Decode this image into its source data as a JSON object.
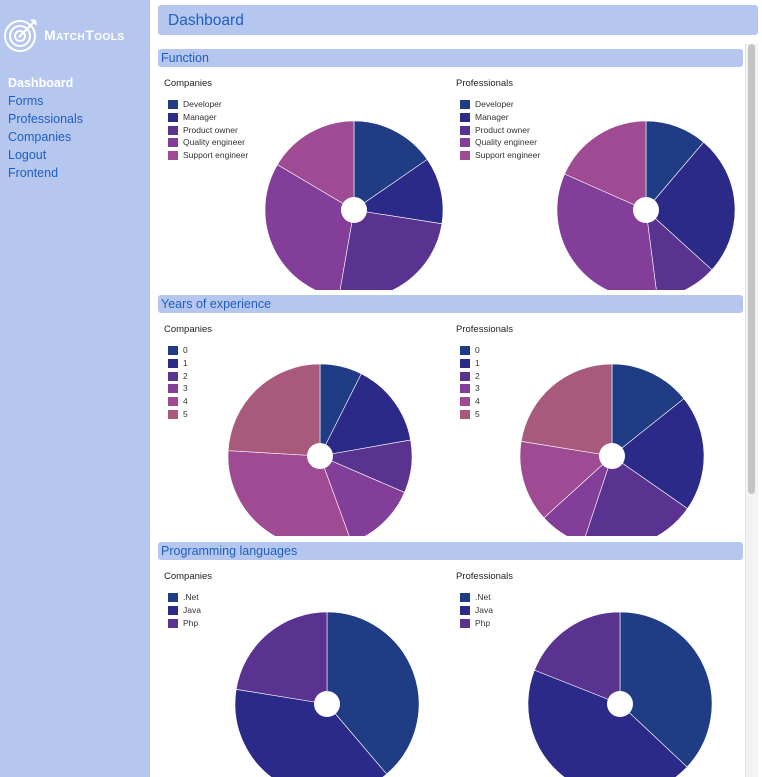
{
  "app": {
    "logo_text": "MatchTools"
  },
  "nav": [
    {
      "label": "Dashboard",
      "active": true
    },
    {
      "label": "Forms"
    },
    {
      "label": "Professionals"
    },
    {
      "label": "Companies"
    },
    {
      "label": "Logout"
    },
    {
      "label": "Frontend"
    }
  ],
  "header": {
    "title": "Dashboard"
  },
  "colors": [
    "#1f3c84",
    "#2c2a88",
    "#5a3290",
    "#823e99",
    "#9f4b93",
    "#a75a7c"
  ],
  "sections": [
    {
      "title": "Function"
    },
    {
      "title": "Years of experience"
    },
    {
      "title": "Programming languages"
    }
  ],
  "chart_data": [
    {
      "type": "pie",
      "title": "Companies",
      "categories": [
        "Developer",
        "Manager",
        "Product owner",
        "Quality engineer",
        "Support  engineer"
      ],
      "values": [
        14,
        11,
        23,
        28,
        15
      ]
    },
    {
      "type": "pie",
      "title": "Professionals",
      "categories": [
        "Developer",
        "Manager",
        "Product owner",
        "Quality engineer",
        "Support  engineer"
      ],
      "values": [
        11,
        25,
        11,
        33,
        18
      ]
    },
    {
      "type": "pie",
      "title": "Companies",
      "categories": [
        "0",
        "1",
        "2",
        "3",
        "4",
        "5"
      ],
      "values": [
        4,
        8,
        5,
        7,
        17,
        13
      ]
    },
    {
      "type": "pie",
      "title": "Professionals",
      "categories": [
        "0",
        "1",
        "2",
        "3",
        "4",
        "5"
      ],
      "values": [
        7,
        10,
        10,
        4,
        7,
        11
      ]
    },
    {
      "type": "pie",
      "title": "Companies",
      "categories": [
        ".Net",
        "Java",
        "Php"
      ],
      "values": [
        38,
        38,
        22
      ]
    },
    {
      "type": "pie",
      "title": "Professionals",
      "categories": [
        ".Net",
        "Java",
        "Php"
      ],
      "values": [
        37,
        44,
        19
      ]
    }
  ]
}
